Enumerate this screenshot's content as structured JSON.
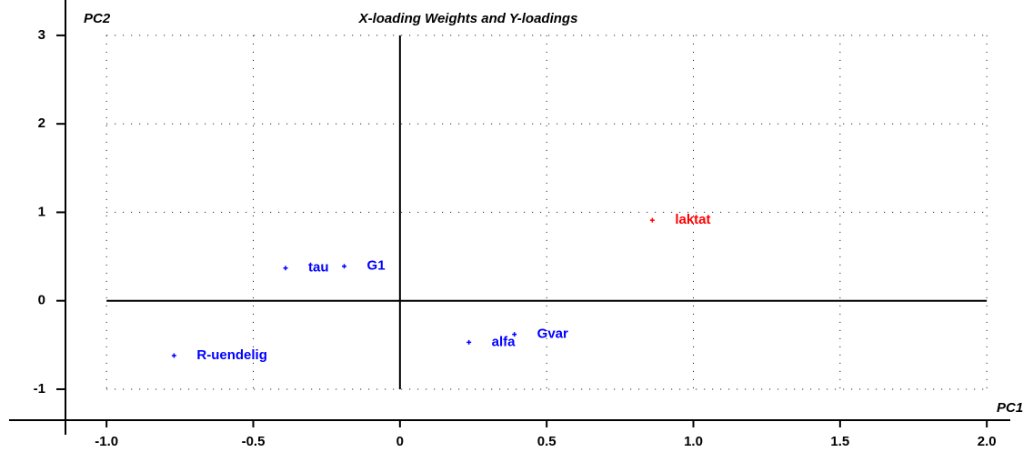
{
  "chart_data": {
    "type": "scatter",
    "title": "X-loading Weights and Y-loadings",
    "xlabel": "PC1",
    "ylabel": "PC2",
    "xlim": [
      -1.14,
      2.08
    ],
    "ylim": [
      -1.35,
      3.4
    ],
    "xticks": [
      {
        "value": -1,
        "label": "-1.0"
      },
      -0.5,
      0,
      0.5,
      {
        "value": 1,
        "label": "1.0"
      },
      1.5,
      {
        "value": 2,
        "label": "2.0"
      }
    ],
    "yticks": [
      -1,
      0,
      1,
      2,
      3
    ],
    "grid": true,
    "series": [
      {
        "color": "#0000ff",
        "labels": [
          "tau",
          "G1",
          "R-uendelig",
          "alfa",
          "Gvar"
        ],
        "x": [
          -0.39,
          -0.19,
          -0.77,
          0.235,
          0.39
        ],
        "values": [
          0.37,
          0.39,
          -0.62,
          -0.47,
          -0.38
        ]
      },
      {
        "color": "#ff0000",
        "labels": [
          "laktat"
        ],
        "x": [
          0.86
        ],
        "values": [
          0.91
        ]
      }
    ]
  }
}
